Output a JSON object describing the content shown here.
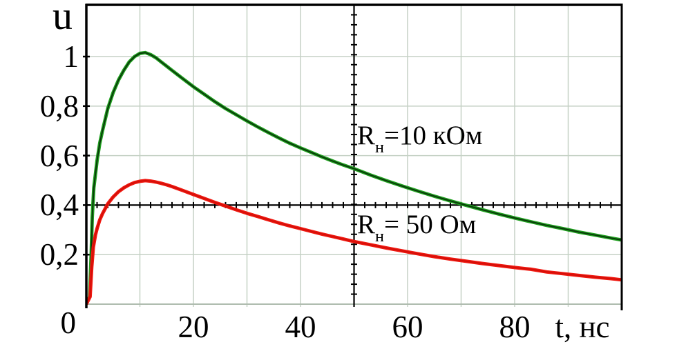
{
  "figure": {
    "y_axis_title": "u",
    "x_axis_title": "t, нс",
    "y_ticks": [
      {
        "u": 1.0,
        "label": "1"
      },
      {
        "u": 0.8,
        "label": "0,8"
      },
      {
        "u": 0.6,
        "label": "0,6"
      },
      {
        "u": 0.4,
        "label": "0,4"
      },
      {
        "u": 0.2,
        "label": "0,2"
      }
    ],
    "origin_label": "0",
    "x_ticks": [
      {
        "t": 20,
        "label": "20"
      },
      {
        "t": 40,
        "label": "40"
      },
      {
        "t": 60,
        "label": "60"
      },
      {
        "t": 80,
        "label": "80"
      }
    ]
  },
  "chart_data": {
    "type": "line",
    "title": "",
    "xlabel": "t, нс",
    "ylabel": "u",
    "xlim": [
      0,
      100
    ],
    "ylim": [
      0,
      1.209
    ],
    "grid": true,
    "x_grid_step": 10,
    "y_grid_step": 0.2,
    "crosshair_axes": {
      "x": 50,
      "y": 0.4,
      "x_divisions": 50,
      "y_divisions": 30
    },
    "legend_position": "inline-annotations",
    "series": [
      {
        "name": "Rн=10 кОм",
        "color": "#1fa01f",
        "core_color": "#0a3a0a",
        "points": [
          [
            0,
            0
          ],
          [
            0.6,
            0.03
          ],
          [
            0.9,
            0.2
          ],
          [
            1.1,
            0.35
          ],
          [
            1.4,
            0.47
          ],
          [
            2,
            0.58
          ],
          [
            2.5,
            0.65
          ],
          [
            3,
            0.7
          ],
          [
            4,
            0.79
          ],
          [
            5,
            0.855
          ],
          [
            6,
            0.905
          ],
          [
            7,
            0.945
          ],
          [
            8,
            0.978
          ],
          [
            9,
            1.0
          ],
          [
            10,
            1.013
          ],
          [
            11,
            1.016
          ],
          [
            12,
            1.008
          ],
          [
            13,
            0.995
          ],
          [
            14,
            0.978
          ],
          [
            15,
            0.961
          ],
          [
            16,
            0.944
          ],
          [
            18,
            0.911
          ],
          [
            20,
            0.878
          ],
          [
            22,
            0.848
          ],
          [
            24,
            0.818
          ],
          [
            26,
            0.79
          ],
          [
            28,
            0.765
          ],
          [
            30,
            0.74
          ],
          [
            32,
            0.716
          ],
          [
            34,
            0.693
          ],
          [
            36,
            0.671
          ],
          [
            38,
            0.65
          ],
          [
            40,
            0.631
          ],
          [
            42,
            0.613
          ],
          [
            44,
            0.595
          ],
          [
            46,
            0.578
          ],
          [
            48,
            0.562
          ],
          [
            50,
            0.547
          ],
          [
            53,
            0.522
          ],
          [
            56,
            0.499
          ],
          [
            59,
            0.477
          ],
          [
            62,
            0.456
          ],
          [
            65,
            0.436
          ],
          [
            68,
            0.417
          ],
          [
            71,
            0.399
          ],
          [
            74,
            0.381
          ],
          [
            77,
            0.364
          ],
          [
            80,
            0.348
          ],
          [
            83,
            0.333
          ],
          [
            86,
            0.318
          ],
          [
            89,
            0.305
          ],
          [
            92,
            0.291
          ],
          [
            95,
            0.279
          ],
          [
            98,
            0.267
          ],
          [
            100,
            0.259
          ]
        ]
      },
      {
        "name": "Rн= 50 Ом",
        "color": "#f01810",
        "core_color": "#d40f08",
        "points": [
          [
            0,
            0
          ],
          [
            0.7,
            0.03
          ],
          [
            1,
            0.15
          ],
          [
            1.3,
            0.23
          ],
          [
            1.7,
            0.28
          ],
          [
            2,
            0.305
          ],
          [
            2.5,
            0.34
          ],
          [
            3,
            0.365
          ],
          [
            4,
            0.405
          ],
          [
            5,
            0.433
          ],
          [
            6,
            0.454
          ],
          [
            7,
            0.47
          ],
          [
            8,
            0.482
          ],
          [
            9,
            0.491
          ],
          [
            10,
            0.496
          ],
          [
            11,
            0.499
          ],
          [
            12,
            0.497
          ],
          [
            13,
            0.493
          ],
          [
            14,
            0.488
          ],
          [
            15,
            0.482
          ],
          [
            16,
            0.475
          ],
          [
            18,
            0.459
          ],
          [
            20,
            0.443
          ],
          [
            22,
            0.427
          ],
          [
            24,
            0.411
          ],
          [
            26,
            0.396
          ],
          [
            28,
            0.381
          ],
          [
            30,
            0.367
          ],
          [
            32,
            0.354
          ],
          [
            34,
            0.341
          ],
          [
            36,
            0.328
          ],
          [
            38,
            0.316
          ],
          [
            40,
            0.305
          ],
          [
            42,
            0.294
          ],
          [
            44,
            0.283
          ],
          [
            46,
            0.273
          ],
          [
            48,
            0.263
          ],
          [
            50,
            0.253
          ],
          [
            53,
            0.24
          ],
          [
            56,
            0.227
          ],
          [
            59,
            0.215
          ],
          [
            62,
            0.203
          ],
          [
            65,
            0.192
          ],
          [
            68,
            0.182
          ],
          [
            71,
            0.173
          ],
          [
            74,
            0.164
          ],
          [
            77,
            0.156
          ],
          [
            80,
            0.148
          ],
          [
            83,
            0.141
          ],
          [
            86,
            0.13
          ],
          [
            89,
            0.123
          ],
          [
            92,
            0.116
          ],
          [
            95,
            0.109
          ],
          [
            98,
            0.103
          ],
          [
            100,
            0.098
          ]
        ]
      }
    ],
    "annotations": [
      {
        "prefix": "R",
        "sub": "н",
        "rest": "=10 кОм",
        "full_text": "Rн=10 кОм",
        "t": 51.5,
        "u": 0.68
      },
      {
        "prefix": "R",
        "sub": "н",
        "rest": "= 50 Ом",
        "full_text": "Rн= 50 Ом",
        "t": 51.5,
        "u": 0.32
      }
    ]
  },
  "colors": {
    "background": "#ffffff",
    "grid": "#c5d1c5",
    "bottom_line": "#aebbae",
    "frame": "#000000",
    "crosshair": "#000000",
    "text": "#000000"
  }
}
